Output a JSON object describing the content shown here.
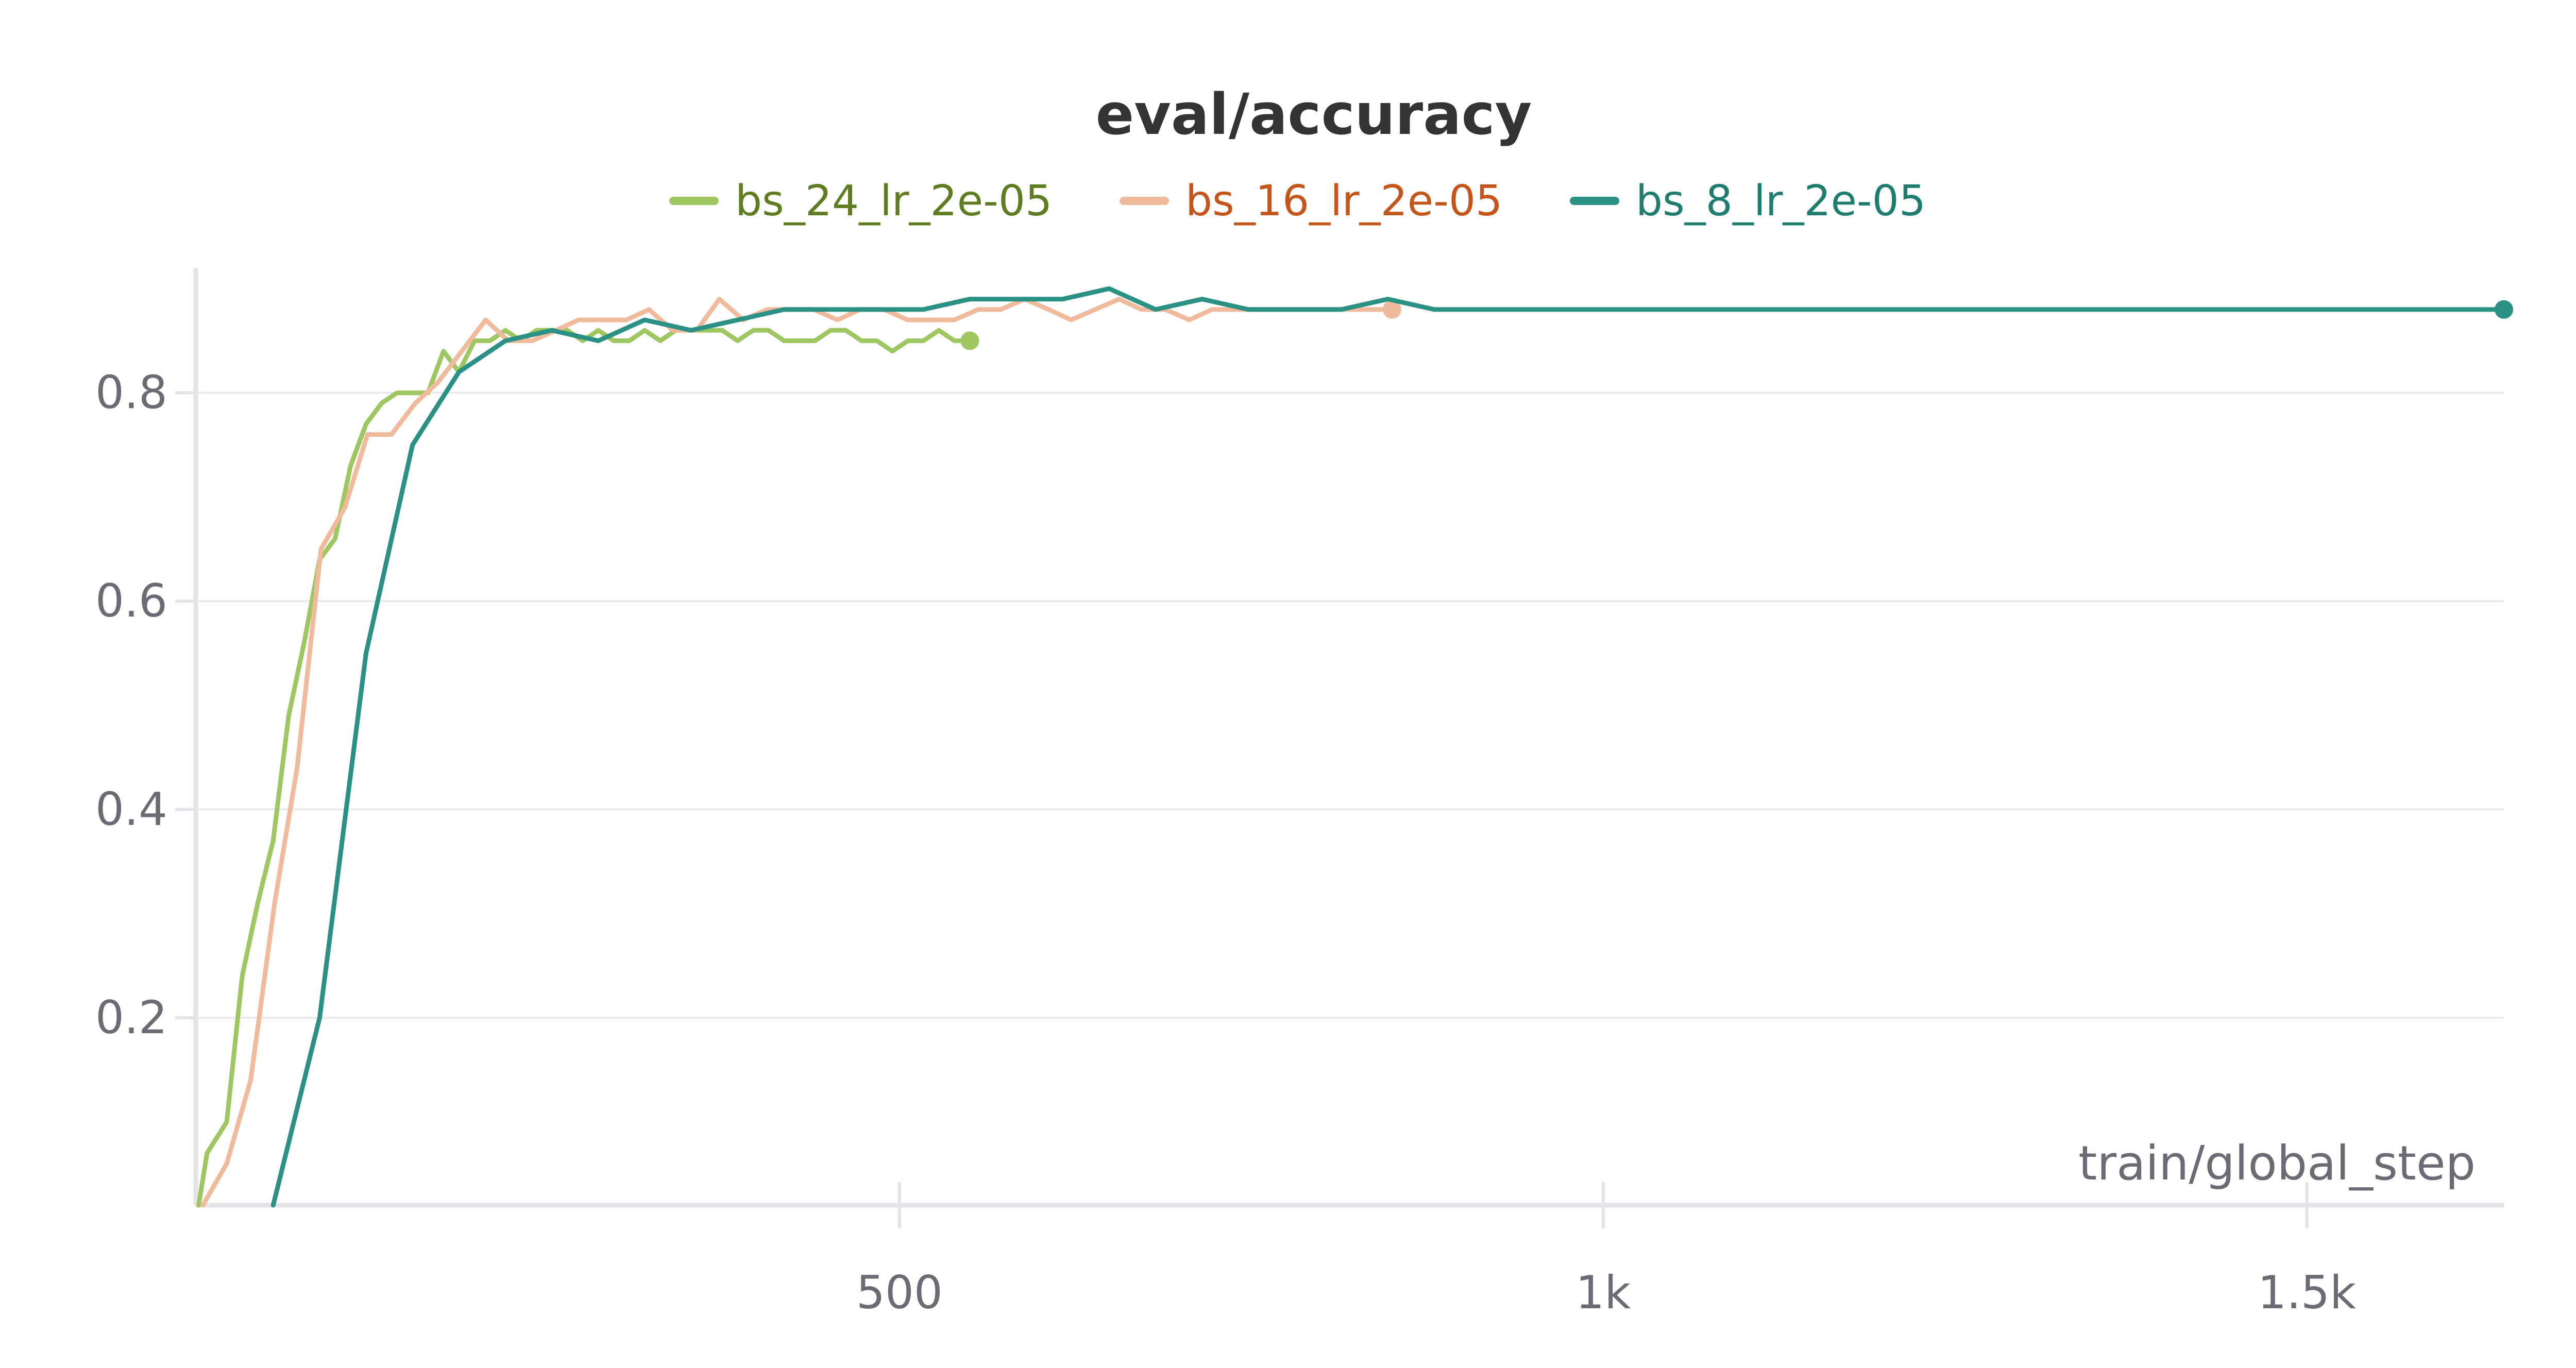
{
  "chart_data": {
    "type": "line",
    "title": "eval/accuracy",
    "xlabel": "train/global_step",
    "ylabel": "",
    "xlim": [
      0,
      1640
    ],
    "ylim": [
      0.02,
      0.92
    ],
    "x_ticks": [
      {
        "value": 500,
        "label": "500"
      },
      {
        "value": 1000,
        "label": "1k"
      },
      {
        "value": 1500,
        "label": "1.5k"
      }
    ],
    "y_ticks": [
      {
        "value": 0.2,
        "label": "0.2"
      },
      {
        "value": 0.4,
        "label": "0.4"
      },
      {
        "value": 0.6,
        "label": "0.6"
      },
      {
        "value": 0.8,
        "label": "0.8"
      }
    ],
    "grid": true,
    "legend_position": "top",
    "series": [
      {
        "name": "bs_24_lr_2e-05",
        "color": "#9ec761",
        "text_color": "#5e7d20",
        "x": [
          2,
          8,
          22,
          33,
          44,
          55,
          66,
          77,
          88,
          99,
          110,
          121,
          132,
          143,
          154,
          165,
          176,
          187,
          198,
          209,
          220,
          231,
          242,
          253,
          264,
          275,
          286,
          297,
          308,
          319,
          330,
          341,
          352,
          363,
          374,
          385,
          396,
          407,
          418,
          429,
          440,
          451,
          462,
          473,
          484,
          495,
          506,
          517,
          528,
          539,
          550
        ],
        "y": [
          0.02,
          0.07,
          0.1,
          0.24,
          0.31,
          0.37,
          0.49,
          0.56,
          0.64,
          0.66,
          0.73,
          0.77,
          0.79,
          0.8,
          0.8,
          0.8,
          0.84,
          0.82,
          0.85,
          0.85,
          0.86,
          0.85,
          0.86,
          0.86,
          0.86,
          0.85,
          0.86,
          0.85,
          0.85,
          0.86,
          0.85,
          0.86,
          0.86,
          0.86,
          0.86,
          0.85,
          0.86,
          0.86,
          0.85,
          0.85,
          0.85,
          0.86,
          0.86,
          0.85,
          0.85,
          0.84,
          0.85,
          0.85,
          0.86,
          0.85,
          0.85
        ]
      },
      {
        "name": "bs_16_lr_2e-05",
        "color": "#f0bb9c",
        "text_color": "#c4561b",
        "x": [
          5,
          22,
          39,
          56,
          72,
          89,
          106,
          122,
          139,
          156,
          172,
          189,
          206,
          222,
          239,
          256,
          272,
          289,
          306,
          322,
          339,
          356,
          372,
          389,
          406,
          422,
          439,
          456,
          472,
          489,
          506,
          522,
          539,
          556,
          572,
          589,
          606,
          622,
          639,
          656,
          672,
          689,
          706,
          722,
          739,
          756,
          772,
          789,
          806,
          822,
          839,
          850
        ],
        "y": [
          0.02,
          0.06,
          0.14,
          0.31,
          0.44,
          0.65,
          0.69,
          0.76,
          0.76,
          0.79,
          0.81,
          0.84,
          0.87,
          0.85,
          0.85,
          0.86,
          0.87,
          0.87,
          0.87,
          0.88,
          0.86,
          0.86,
          0.89,
          0.87,
          0.88,
          0.88,
          0.88,
          0.87,
          0.88,
          0.88,
          0.87,
          0.87,
          0.87,
          0.88,
          0.88,
          0.89,
          0.88,
          0.87,
          0.88,
          0.89,
          0.88,
          0.88,
          0.87,
          0.88,
          0.88,
          0.88,
          0.88,
          0.88,
          0.88,
          0.88,
          0.88,
          0.88
        ]
      },
      {
        "name": "bs_8_lr_2e-05",
        "color": "#2a9184",
        "text_color": "#1f7d6f",
        "x": [
          55,
          88,
          121,
          154,
          187,
          220,
          253,
          286,
          319,
          352,
          385,
          418,
          451,
          484,
          517,
          550,
          583,
          616,
          649,
          682,
          715,
          748,
          781,
          814,
          847,
          880,
          913,
          1000,
          1200,
          1400,
          1640
        ],
        "y": [
          0.02,
          0.2,
          0.55,
          0.75,
          0.82,
          0.85,
          0.86,
          0.85,
          0.87,
          0.86,
          0.87,
          0.88,
          0.88,
          0.88,
          0.88,
          0.89,
          0.89,
          0.89,
          0.9,
          0.88,
          0.89,
          0.88,
          0.88,
          0.88,
          0.89,
          0.88,
          0.88,
          0.88,
          0.88,
          0.88,
          0.88
        ]
      }
    ]
  }
}
